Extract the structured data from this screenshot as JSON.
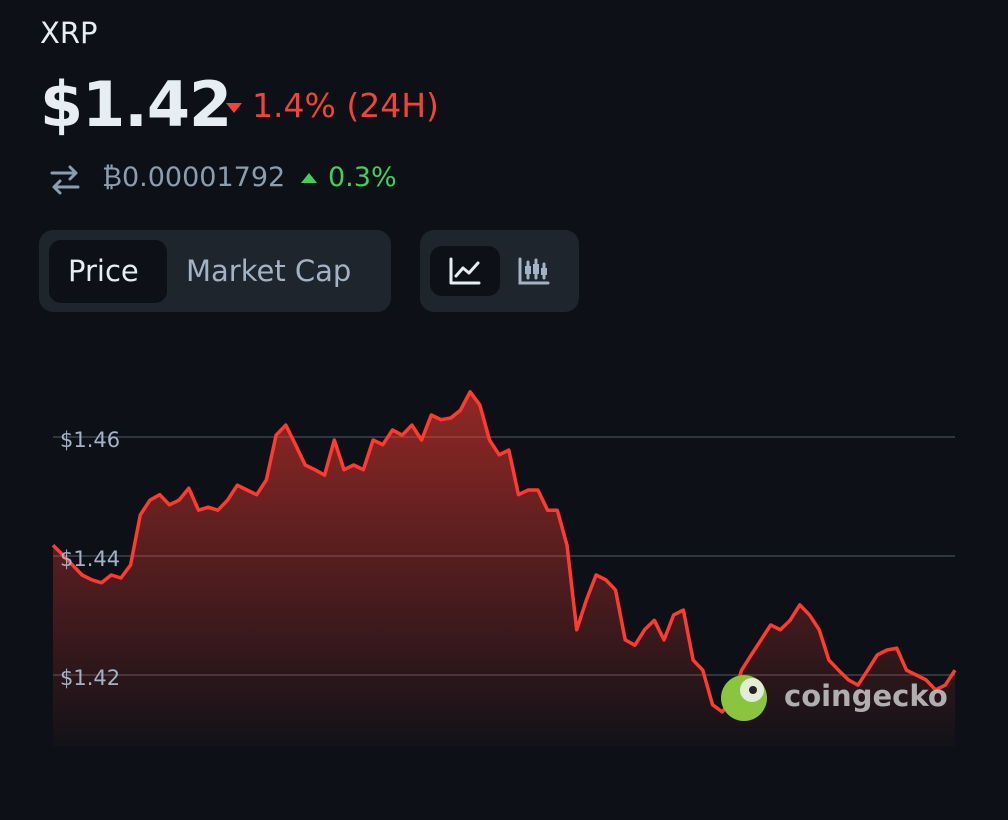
{
  "header": {
    "symbol": "XRP",
    "price": "$1.42",
    "change": "1.4% (24H)",
    "btc_price": "₿0.00001792",
    "btc_change": "0.3%"
  },
  "tabs": [
    "Price",
    "Market Cap"
  ],
  "watermark": "coingecko",
  "chart_data": {
    "type": "area",
    "values": [
      1.4418,
      1.4402,
      1.4385,
      1.4368,
      1.436,
      1.4355,
      1.4368,
      1.4363,
      1.4385,
      1.4469,
      1.4494,
      1.4503,
      1.4486,
      1.4494,
      1.4514,
      1.4477,
      1.4482,
      1.4477,
      1.4494,
      1.4519,
      1.4511,
      1.4503,
      1.4528,
      1.4603,
      1.462,
      1.4587,
      1.4553,
      1.4545,
      1.4536,
      1.4595,
      1.4545,
      1.4553,
      1.4545,
      1.4595,
      1.4587,
      1.4612,
      1.4603,
      1.462,
      1.4595,
      1.4637,
      1.4629,
      1.4632,
      1.4645,
      1.4676,
      1.4654,
      1.4595,
      1.457,
      1.4578,
      1.4503,
      1.4511,
      1.4511,
      1.4477,
      1.4477,
      1.4418,
      1.4276,
      1.4326,
      1.4368,
      1.436,
      1.4343,
      1.4259,
      1.425,
      1.4276,
      1.4292,
      1.4259,
      1.4301,
      1.4309,
      1.4225,
      1.4208,
      1.415,
      1.4138,
      1.4158,
      1.4208,
      1.4234,
      1.4259,
      1.4284,
      1.4276,
      1.4292,
      1.4318,
      1.4301,
      1.4276,
      1.4225,
      1.4208,
      1.4192,
      1.4183,
      1.4208,
      1.4234,
      1.4242,
      1.4245,
      1.4208,
      1.42,
      1.4192,
      1.4175,
      1.4183,
      1.4208
    ],
    "color": "#ff3b30",
    "ylim": [
      1.408,
      1.472
    ],
    "yticks": [
      {
        "value": 1.42,
        "label": "$1.42"
      },
      {
        "value": 1.44,
        "label": "$1.44"
      },
      {
        "value": 1.46,
        "label": "$1.46"
      }
    ],
    "grid": true
  }
}
